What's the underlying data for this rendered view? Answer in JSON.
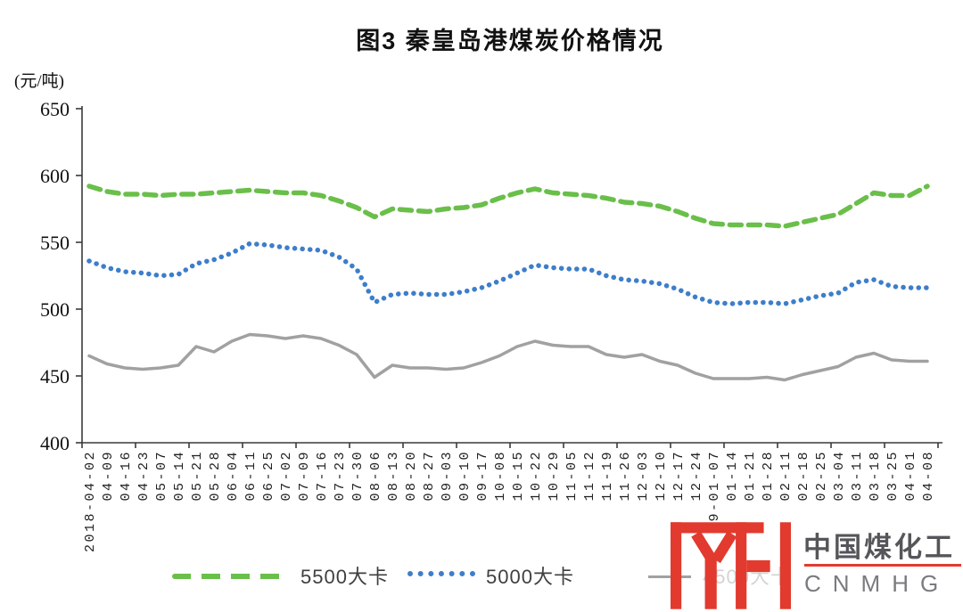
{
  "title": "图3  秦皇岛港煤炭价格情况",
  "y_unit_label": "(元/吨)",
  "legend": {
    "s5500_label": "5500大卡",
    "s5000_label": "5000大卡",
    "s4500_label": "4500大卡"
  },
  "logo": {
    "brand_cn": "中国煤化工",
    "brand_en": "CNMHG"
  },
  "colors": {
    "green": "#6abf4a",
    "blue": "#3d7ecb",
    "gray": "#a1a1a1",
    "logo_red": "#e23a2e",
    "axis": "#3a3a3a"
  },
  "chart_data": {
    "type": "line",
    "title": "图3 秦皇岛港煤炭价格情况",
    "xlabel": "",
    "ylabel": "(元/吨)",
    "ylim": [
      400,
      650
    ],
    "yticks": [
      400,
      450,
      500,
      550,
      600,
      650
    ],
    "grid": false,
    "legend_position": "bottom",
    "categories": [
      "2018-04-02",
      "04-09",
      "04-16",
      "04-23",
      "05-07",
      "05-14",
      "05-21",
      "05-28",
      "06-04",
      "06-11",
      "06-25",
      "07-02",
      "07-09",
      "07-16",
      "07-23",
      "07-30",
      "08-06",
      "08-13",
      "08-20",
      "08-27",
      "09-03",
      "09-10",
      "09-17",
      "10-08",
      "10-15",
      "10-22",
      "10-29",
      "11-05",
      "11-12",
      "11-19",
      "11-26",
      "12-03",
      "12-10",
      "12-17",
      "12-24",
      "9-01-07",
      "01-14",
      "01-21",
      "01-28",
      "02-11",
      "02-18",
      "02-25",
      "03-04",
      "03-11",
      "03-18",
      "03-25",
      "04-01",
      "04-08"
    ],
    "series": [
      {
        "name": "5500大卡",
        "style": "dashed",
        "color": "#6abf4a",
        "values": [
          592,
          588,
          586,
          586,
          585,
          586,
          586,
          587,
          588,
          589,
          588,
          587,
          587,
          585,
          581,
          576,
          569,
          575,
          574,
          573,
          575,
          576,
          578,
          583,
          587,
          590,
          587,
          586,
          585,
          583,
          580,
          579,
          577,
          573,
          568,
          564,
          563,
          563,
          563,
          562,
          565,
          568,
          571,
          579,
          587,
          585,
          585,
          592
        ]
      },
      {
        "name": "5000大卡",
        "style": "dotted",
        "color": "#3d7ecb",
        "values": [
          536,
          531,
          528,
          527,
          525,
          526,
          534,
          537,
          542,
          549,
          548,
          546,
          545,
          544,
          539,
          530,
          505,
          511,
          512,
          511,
          511,
          513,
          516,
          521,
          527,
          533,
          531,
          530,
          530,
          525,
          522,
          521,
          519,
          515,
          509,
          505,
          504,
          505,
          505,
          504,
          507,
          510,
          512,
          520,
          522,
          517,
          516,
          516
        ]
      },
      {
        "name": "4500大卡",
        "style": "solid",
        "color": "#a1a1a1",
        "values": [
          465,
          459,
          456,
          455,
          456,
          458,
          472,
          468,
          476,
          481,
          480,
          478,
          480,
          478,
          473,
          466,
          449,
          458,
          456,
          456,
          455,
          456,
          460,
          465,
          472,
          476,
          473,
          472,
          472,
          466,
          464,
          466,
          461,
          458,
          452,
          448,
          448,
          448,
          449,
          447,
          451,
          454,
          457,
          464,
          467,
          462,
          461,
          461
        ]
      }
    ]
  }
}
